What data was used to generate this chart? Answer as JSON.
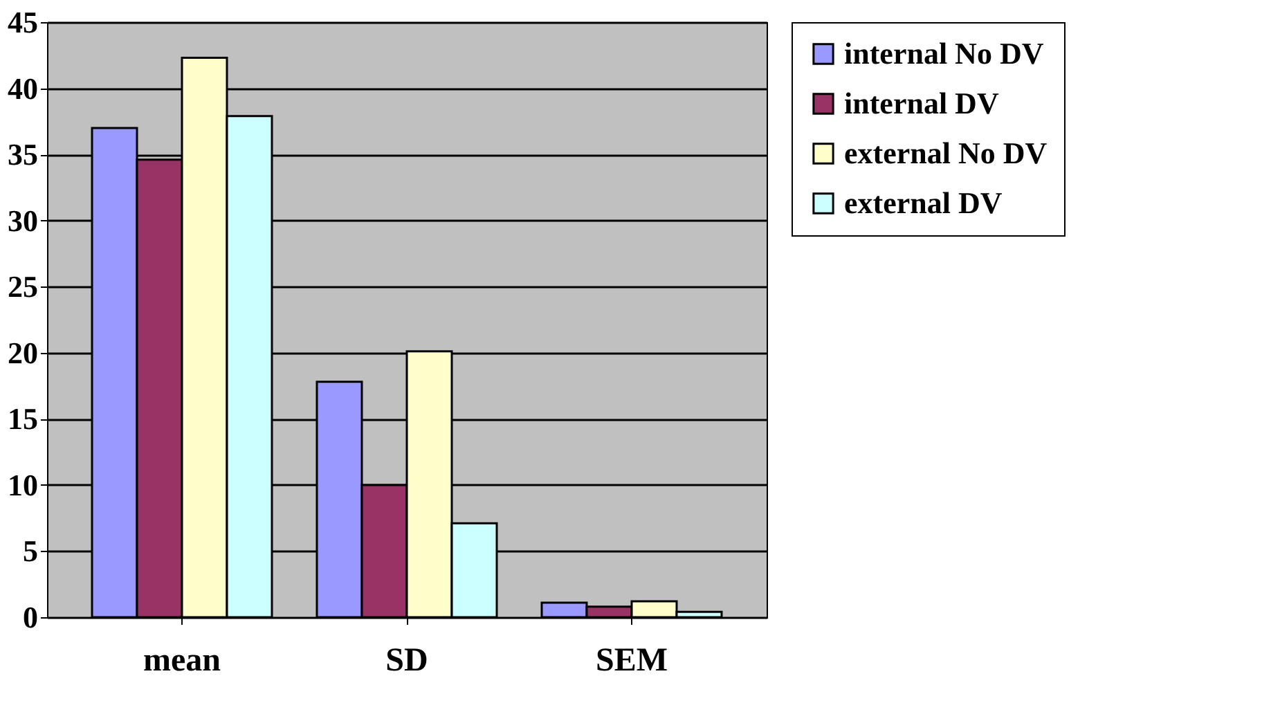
{
  "chart_data": {
    "type": "bar",
    "categories": [
      "mean",
      "SD",
      "SEM"
    ],
    "series": [
      {
        "name": "internal No DV",
        "color": "#9999ff",
        "values": [
          37.0,
          17.8,
          1.1
        ]
      },
      {
        "name": "internal DV",
        "color": "#993366",
        "values": [
          34.6,
          10.0,
          0.8
        ]
      },
      {
        "name": "external No DV",
        "color": "#ffffcc",
        "values": [
          42.3,
          20.1,
          1.2
        ]
      },
      {
        "name": "external DV",
        "color": "#ccffff",
        "values": [
          37.9,
          7.1,
          0.4
        ]
      }
    ],
    "ylim": [
      0,
      45
    ],
    "yticks": [
      0,
      5,
      10,
      15,
      20,
      25,
      30,
      35,
      40,
      45
    ],
    "grid": "y",
    "legend": "right"
  }
}
